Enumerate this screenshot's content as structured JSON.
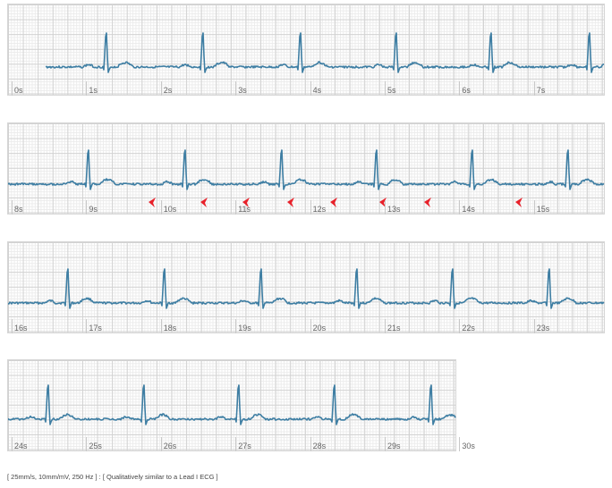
{
  "strips": [
    {
      "ticks": [
        "0s",
        "1s",
        "2s",
        "3s",
        "4s",
        "5s",
        "6s",
        "7s"
      ]
    },
    {
      "ticks": [
        "8s",
        "9s",
        "10s",
        "11s",
        "12s",
        "13s",
        "14s",
        "15s"
      ]
    },
    {
      "ticks": [
        "16s",
        "17s",
        "18s",
        "19s",
        "20s",
        "21s",
        "22s",
        "23s"
      ]
    },
    {
      "ticks": [
        "24s",
        "25s",
        "26s",
        "27s",
        "28s",
        "29s",
        "30s"
      ]
    }
  ],
  "caption": "[ 25mm/s, 10mm/mV, 250 Hz ] : [ Qualitatively similar to a Lead I ECG ]",
  "colors": {
    "trace": "#3e7ea3",
    "arrow": "#e8212a",
    "grid_major": "#d2d2d2",
    "grid_minor": "#ececec"
  },
  "icons": {
    "calibration": "calibration-pulse-icon",
    "marker": "red-arrow-marker-icon"
  }
}
